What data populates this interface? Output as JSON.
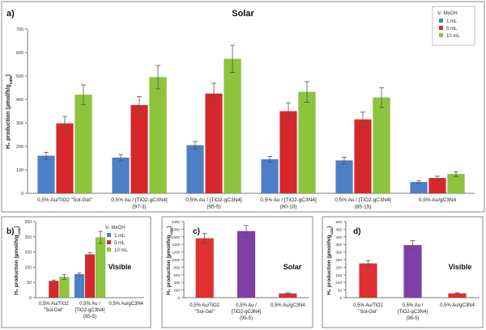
{
  "colors": {
    "s1": "#4d7fc8",
    "s2": "#d6282c",
    "s3": "#8cc43c",
    "purple": "#7f3fa6",
    "red": "#e03030",
    "axis": "#7a7a7a",
    "frame": "#8a8a8a"
  },
  "chart_data": [
    {
      "panel": "a)",
      "type": "bar",
      "title": "Solar",
      "ylabel": "H₂ production (µmol/h/g_cata)",
      "ylim": [
        0,
        700
      ],
      "yticks": [
        0,
        100,
        200,
        300,
        400,
        500,
        600,
        700
      ],
      "legend": {
        "title": "V- MeOH",
        "placement": "top-right"
      },
      "categories": [
        "0,5% Au/TiO2 \"Sol-Gel\"",
        "0,5% Au / [TiO2-gC3N4] (97-3)",
        "0,5% Au / [TiO2-gC3N4] (95-5)",
        "0,5% Au / [TiO2-gC3N4] (90-10)",
        "0,5% Au / [TiO2-gC3N4] (85-15)",
        "0,5% Au/gC3N4"
      ],
      "category_lines": [
        [
          "0,5% Au/TiO2 \"Sol-Gel\""
        ],
        [
          "0,5% Au / [TiO2-gC3N4]",
          "(97-3)"
        ],
        [
          "0,5% Au / [TiO2-gC3N4]",
          "(95-5)"
        ],
        [
          "0,5% Au / [TiO2-gC3N4]",
          "(90-10)"
        ],
        [
          "0,5% Au / [TiO2-gC3N4]",
          "(85-15)"
        ],
        [
          "0,5% Au/gC3N4"
        ]
      ],
      "series": [
        {
          "name": "1 mL",
          "color": "#4d7fc8",
          "values": [
            160,
            152,
            205,
            145,
            140,
            48
          ],
          "errors": [
            15,
            13,
            16,
            12,
            14,
            6
          ]
        },
        {
          "name": "5 mL",
          "color": "#d6282c",
          "values": [
            298,
            376,
            425,
            350,
            315,
            65
          ],
          "errors": [
            30,
            36,
            44,
            36,
            32,
            8
          ]
        },
        {
          "name": "10 mL",
          "color": "#8cc43c",
          "values": [
            420,
            495,
            573,
            432,
            408,
            82
          ],
          "errors": [
            42,
            50,
            58,
            44,
            42,
            10
          ]
        }
      ]
    },
    {
      "panel": "b)",
      "type": "bar",
      "title": "Visible",
      "ylabel": "H₂ production (µmol/h/g_cata)",
      "ylim": [
        0,
        250
      ],
      "yticks": [
        0,
        50,
        100,
        150,
        200,
        250
      ],
      "legend": {
        "title": "V- MeOH",
        "placement": "top-right"
      },
      "categories": [
        "0,5% Au/TiO2 \"Sol-Gel\"",
        "0,5% Au / [TiO2-gC3N4] (95-5)",
        "0,5% Au/gC3N4"
      ],
      "category_lines": [
        [
          "0,5% Au/TiO2",
          "\"Sol-Gel\""
        ],
        [
          "0,5% Au /",
          "[TiO2-gC3N4]",
          "(95-5)"
        ],
        [
          "0,5% Au/gC3N4"
        ]
      ],
      "series": [
        {
          "name": "1 mL",
          "color": "#4d7fc8",
          "values": [
            0,
            77,
            0
          ],
          "errors": [
            0,
            4,
            0
          ]
        },
        {
          "name": "5 mL",
          "color": "#d6282c",
          "values": [
            55,
            142,
            0
          ],
          "errors": [
            3,
            6,
            0
          ]
        },
        {
          "name": "10 mL",
          "color": "#8cc43c",
          "values": [
            68,
            198,
            0
          ],
          "errors": [
            8,
            20,
            0
          ]
        }
      ]
    },
    {
      "panel": "c)",
      "type": "bar",
      "title": "Solar",
      "ylabel": "H₂ production (µmol/h/g_cata)",
      "ylim": [
        0,
        2000
      ],
      "yticks": [
        0,
        200,
        400,
        600,
        800,
        1000,
        1200,
        1400,
        1600,
        1800,
        2000
      ],
      "categories": [
        "0,5% Au/TiO2 \"Sol-Gel\"",
        "0,5% Au / [TiO2-gC3N4] (95-5)",
        "0,5% Au/gC3N4"
      ],
      "category_lines": [
        [
          "0,5% Au/TiO2",
          "\"Sol-Gel\""
        ],
        [
          "0,5% Au /",
          "[TiO2-gC3N4]",
          "(95-5)"
        ],
        [
          "0,5% Au/gC3N4"
        ]
      ],
      "bars": [
        {
          "value": 1560,
          "error": 130,
          "color": "#e03030"
        },
        {
          "value": 1750,
          "error": 150,
          "color": "#7f3fa6"
        },
        {
          "value": 110,
          "error": 15,
          "color": "#e03030"
        }
      ]
    },
    {
      "panel": "d)",
      "type": "bar",
      "title": "Visible",
      "ylabel": "H₂ production (µmol/h/g_cata)",
      "ylim": [
        0,
        500
      ],
      "yticks": [
        0,
        50,
        100,
        150,
        200,
        250,
        300,
        350,
        400,
        450,
        500
      ],
      "categories": [
        "0,5% Au/TiO2 \"Sol-Gel\"",
        "0,5% Au / [TiO2-gC3N4] (95-5)",
        "0,5% Au/gC3N4"
      ],
      "category_lines": [
        [
          "0,5% Au/TiO2",
          "\"Sol-Gel\""
        ],
        [
          "0,5% Au /",
          "[TiO2-gC3N4]",
          "(95-5)"
        ],
        [
          "0,5% Au/gC3N4"
        ]
      ],
      "bars": [
        {
          "value": 225,
          "error": 20,
          "color": "#e03030"
        },
        {
          "value": 345,
          "error": 30,
          "color": "#7f3fa6"
        },
        {
          "value": 28,
          "error": 4,
          "color": "#e03030"
        }
      ]
    }
  ]
}
